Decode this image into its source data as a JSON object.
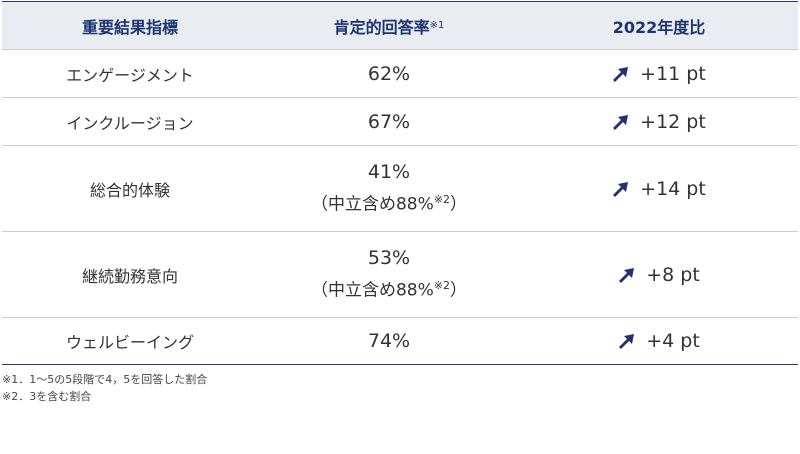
{
  "header": {
    "col1": "重要結果指標",
    "col2": "肯定的回答率",
    "col2_note": "※1",
    "col3": "2022年度比"
  },
  "rows": [
    {
      "name": "エンゲージメント",
      "value": "62%",
      "sub": "",
      "sub_note": "",
      "diff": "+11 pt"
    },
    {
      "name": "インクルージョン",
      "value": "67%",
      "sub": "",
      "sub_note": "",
      "diff": "+12 pt"
    },
    {
      "name": "総合的体験",
      "value": "41%",
      "sub": "（中立含め88%",
      "sub_note": "※2",
      "sub_end": "）",
      "diff": "+14 pt"
    },
    {
      "name": "継続勤務意向",
      "value": "53%",
      "sub": "（中立含め88%",
      "sub_note": "※2",
      "sub_end": "）",
      "diff": "+8 pt"
    },
    {
      "name": "ウェルビーイング",
      "value": "74%",
      "sub": "",
      "sub_note": "",
      "diff": "+4 pt"
    }
  ],
  "notes": {
    "note1": "※1．1～5の5段階で4，5を回答した割合",
    "note2": "※2．3を含む割合"
  },
  "colors": {
    "accent": "#1e3470",
    "header_bg": "#e9ecf1",
    "arrow": "#1e3470"
  },
  "icons": {
    "diff": "arrow-up-right-icon"
  }
}
